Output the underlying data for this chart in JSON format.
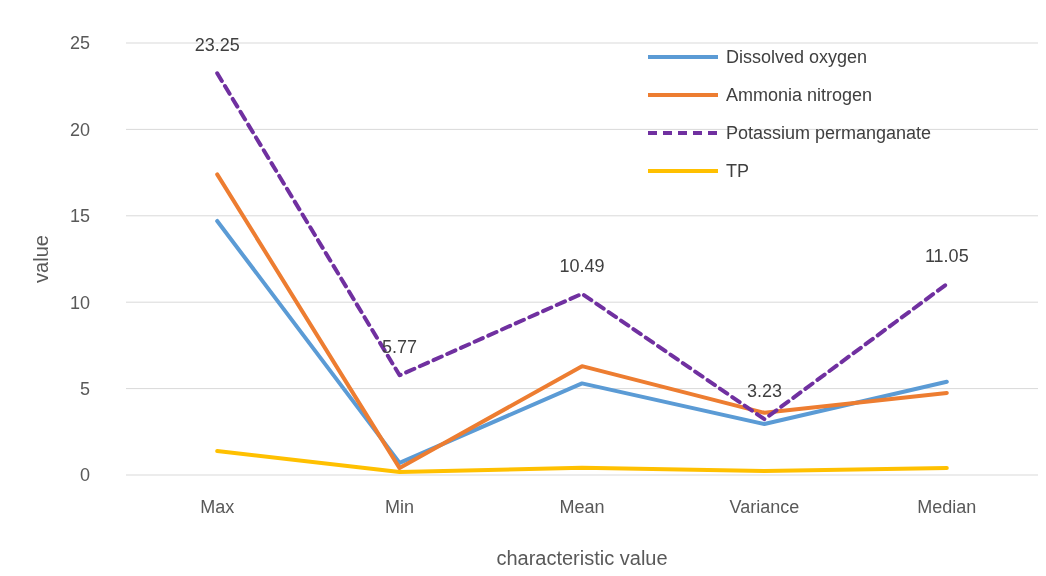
{
  "chart_data": {
    "type": "line",
    "xlabel": "characteristic value",
    "ylabel": "value",
    "categories": [
      "Max",
      "Min",
      "Mean",
      "Variance",
      "Median"
    ],
    "ylim": [
      0,
      25
    ],
    "yticks": [
      0,
      5,
      10,
      15,
      20,
      25
    ],
    "grid": "y",
    "legend": "top right",
    "marker": "none",
    "series": [
      {
        "name": "Dissolved oxygen",
        "color": "#5b9bd5",
        "values": [
          14.7,
          0.7,
          5.3,
          2.95,
          5.4
        ]
      },
      {
        "name": "Ammonia nitrogen",
        "color": "#ed7d31",
        "values": [
          17.4,
          0.4,
          6.3,
          3.6,
          4.75
        ]
      },
      {
        "name": "Potassium permanganate",
        "color": "#7030a0",
        "line_style": "dashed",
        "values": [
          23.25,
          5.77,
          10.49,
          3.23,
          11.05
        ],
        "value_labels": [
          "23.25",
          "5.77",
          "10.49",
          "3.23",
          "11.05"
        ]
      },
      {
        "name": "TP",
        "color": "#ffc000",
        "values": [
          1.39,
          0.17,
          0.42,
          0.23,
          0.4
        ]
      }
    ]
  }
}
